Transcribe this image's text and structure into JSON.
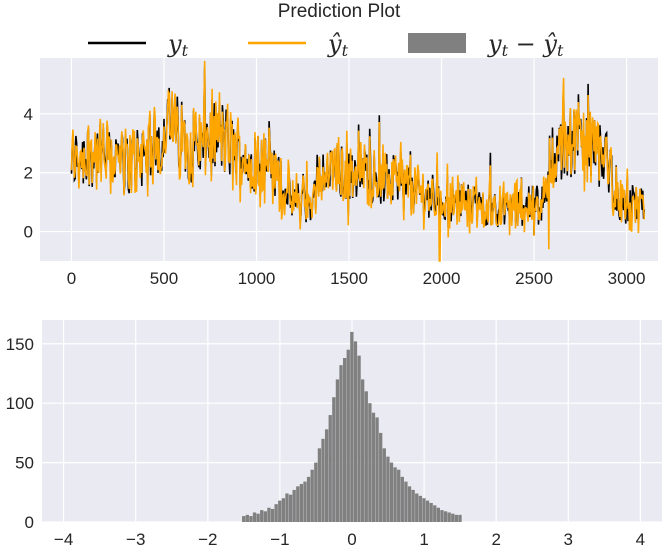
{
  "title": "Prediction Plot",
  "legend": {
    "actual": {
      "main": "y",
      "sub": "t",
      "color": "#000000"
    },
    "predicted": {
      "main": "ŷ",
      "sub": "t",
      "color": "#ffa500"
    },
    "residual": {
      "main": "y",
      "sub": "t",
      "op": " − ",
      "main2": "ŷ",
      "sub2": "t",
      "color": "#808080"
    }
  },
  "colors": {
    "axes_bg": "#eaeaf2",
    "grid": "#ffffff",
    "actual": "#000000",
    "predicted": "#ffa500",
    "residual_bars": "#808080"
  },
  "chart_data": [
    {
      "type": "line",
      "title": "Prediction Plot",
      "xlim": [
        -170,
        3170
      ],
      "ylim": [
        -1,
        5.9
      ],
      "xticks": [
        0,
        500,
        1000,
        1500,
        2000,
        2500,
        3000
      ],
      "yticks": [
        0,
        2,
        4
      ],
      "grid": true,
      "legend_position": "top",
      "n_points": 3100,
      "series": [
        {
          "name": "y_t",
          "color": "#000000",
          "note": "approximate level profile (x, level)",
          "profile": [
            [
              0,
              2.4
            ],
            [
              100,
              2.7
            ],
            [
              300,
              2.3
            ],
            [
              450,
              2.9
            ],
            [
              520,
              3.6
            ],
            [
              650,
              2.9
            ],
            [
              800,
              3.3
            ],
            [
              900,
              2.6
            ],
            [
              1050,
              2.3
            ],
            [
              1150,
              1.5
            ],
            [
              1200,
              1.0
            ],
            [
              1300,
              1.0
            ],
            [
              1350,
              1.9
            ],
            [
              1500,
              2.1
            ],
            [
              1700,
              1.8
            ],
            [
              1900,
              1.3
            ],
            [
              2100,
              1.0
            ],
            [
              2300,
              0.8
            ],
            [
              2550,
              0.9
            ],
            [
              2600,
              2.6
            ],
            [
              2750,
              3.1
            ],
            [
              2900,
              2.4
            ],
            [
              2970,
              0.9
            ],
            [
              3090,
              0.9
            ]
          ]
        },
        {
          "name": "ŷ_t",
          "color": "#ffa500",
          "note": "tracks y_t closely; notable dips near x=1990 (y≈-1) and x=2580 (y≈-0.6)"
        }
      ]
    },
    {
      "type": "bar",
      "xlim": [
        -4.3,
        4.3
      ],
      "ylim": [
        0,
        170
      ],
      "xticks": [
        -4,
        -3,
        -2,
        -1,
        0,
        1,
        2,
        3,
        4
      ],
      "yticks": [
        0,
        50,
        100,
        150
      ],
      "grid": true,
      "bin_width": 0.05,
      "bins": {
        "x": [
          -1.5,
          -1.45,
          -1.4,
          -1.35,
          -1.3,
          -1.25,
          -1.2,
          -1.15,
          -1.1,
          -1.05,
          -1.0,
          -0.95,
          -0.9,
          -0.85,
          -0.8,
          -0.75,
          -0.7,
          -0.65,
          -0.6,
          -0.55,
          -0.5,
          -0.45,
          -0.4,
          -0.35,
          -0.3,
          -0.25,
          -0.2,
          -0.15,
          -0.1,
          -0.05,
          0.0,
          0.05,
          0.1,
          0.15,
          0.2,
          0.25,
          0.3,
          0.35,
          0.4,
          0.45,
          0.5,
          0.55,
          0.6,
          0.65,
          0.7,
          0.75,
          0.8,
          0.85,
          0.9,
          0.95,
          1.0,
          1.05,
          1.1,
          1.15,
          1.2,
          1.25,
          1.3,
          1.35,
          1.4,
          1.45,
          1.5
        ],
        "values": [
          5,
          6,
          5,
          8,
          7,
          10,
          9,
          12,
          11,
          15,
          18,
          20,
          24,
          23,
          27,
          30,
          32,
          34,
          38,
          44,
          50,
          62,
          70,
          78,
          90,
          105,
          120,
          132,
          138,
          145,
          160,
          152,
          140,
          120,
          110,
          100,
          92,
          88,
          75,
          62,
          55,
          50,
          46,
          44,
          38,
          34,
          30,
          27,
          24,
          22,
          20,
          18,
          16,
          14,
          12,
          10,
          9,
          8,
          7,
          6,
          6
        ]
      }
    }
  ]
}
